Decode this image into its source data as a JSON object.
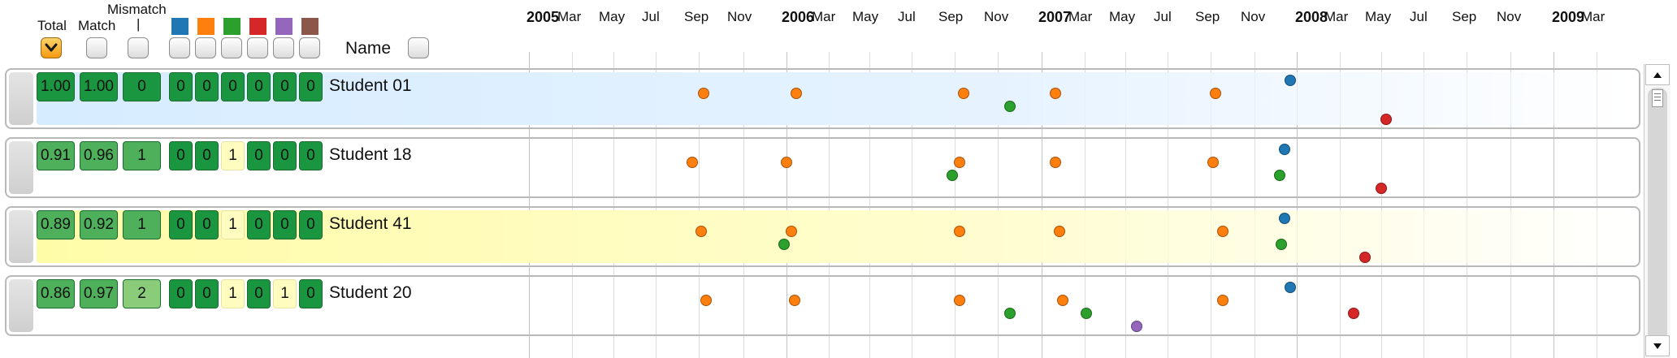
{
  "header": {
    "total_label": "Total",
    "match_label": "Match",
    "mismatch_label": "Mismatch",
    "mismatch_tick": "|",
    "name_label": "Name",
    "active_sort": "total",
    "category_colors": [
      "#1f77b4",
      "#ff7f0e",
      "#2ca02c",
      "#d62728",
      "#9467bd",
      "#8c564b"
    ]
  },
  "timeline": {
    "ticks": [
      {
        "label": "2005",
        "year": true
      },
      {
        "label": "Mar",
        "year": false
      },
      {
        "label": "May",
        "year": false
      },
      {
        "label": "Jul",
        "year": false
      },
      {
        "label": "Sep",
        "year": false
      },
      {
        "label": "Nov",
        "year": false
      },
      {
        "label": "2006",
        "year": true
      },
      {
        "label": "Mar",
        "year": false
      },
      {
        "label": "May",
        "year": false
      },
      {
        "label": "Jul",
        "year": false
      },
      {
        "label": "Sep",
        "year": false
      },
      {
        "label": "Nov",
        "year": false
      },
      {
        "label": "2007",
        "year": true
      },
      {
        "label": "Mar",
        "year": false
      },
      {
        "label": "May",
        "year": false
      },
      {
        "label": "Jul",
        "year": false
      },
      {
        "label": "Sep",
        "year": false
      },
      {
        "label": "Nov",
        "year": false
      },
      {
        "label": "2008",
        "year": true
      },
      {
        "label": "Mar",
        "year": false
      },
      {
        "label": "May",
        "year": false
      },
      {
        "label": "Jul",
        "year": false
      },
      {
        "label": "Sep",
        "year": false
      },
      {
        "label": "Nov",
        "year": false
      },
      {
        "label": "2009",
        "year": true
      },
      {
        "label": "Mar",
        "year": false
      }
    ]
  },
  "rows": [
    {
      "name": "Student 01",
      "highlight": "blue",
      "total": "1.00",
      "match": "1.00",
      "mismatch": "0",
      "counts": [
        "0",
        "0",
        "0",
        "0",
        "0",
        "0"
      ],
      "events": [
        {
          "date": "2005-09-05",
          "cat": 1,
          "lane": 1
        },
        {
          "date": "2006-01-15",
          "cat": 1,
          "lane": 1
        },
        {
          "date": "2006-09-10",
          "cat": 1,
          "lane": 1
        },
        {
          "date": "2006-11-15",
          "cat": 2,
          "lane": 2
        },
        {
          "date": "2007-01-20",
          "cat": 1,
          "lane": 1
        },
        {
          "date": "2007-09-05",
          "cat": 1,
          "lane": 1
        },
        {
          "date": "2007-12-20",
          "cat": 0,
          "lane": 0
        },
        {
          "date": "2008-05-05",
          "cat": 3,
          "lane": 3
        }
      ]
    },
    {
      "name": "Student 18",
      "highlight": "white",
      "total": "0.91",
      "match": "0.96",
      "mismatch": "1",
      "counts": [
        "0",
        "0",
        "1",
        "0",
        "0",
        "0"
      ],
      "events": [
        {
          "date": "2005-08-20",
          "cat": 1,
          "lane": 1
        },
        {
          "date": "2006-01-01",
          "cat": 1,
          "lane": 1
        },
        {
          "date": "2006-09-05",
          "cat": 1,
          "lane": 1
        },
        {
          "date": "2006-08-25",
          "cat": 2,
          "lane": 2
        },
        {
          "date": "2007-01-20",
          "cat": 1,
          "lane": 1
        },
        {
          "date": "2007-09-01",
          "cat": 1,
          "lane": 1
        },
        {
          "date": "2007-12-12",
          "cat": 0,
          "lane": 0
        },
        {
          "date": "2007-12-05",
          "cat": 2,
          "lane": 2
        },
        {
          "date": "2008-04-28",
          "cat": 3,
          "lane": 3
        }
      ]
    },
    {
      "name": "Student 41",
      "highlight": "yellow",
      "total": "0.89",
      "match": "0.92",
      "mismatch": "1",
      "counts": [
        "0",
        "0",
        "1",
        "0",
        "0",
        "0"
      ],
      "events": [
        {
          "date": "2005-09-01",
          "cat": 1,
          "lane": 1
        },
        {
          "date": "2006-01-08",
          "cat": 1,
          "lane": 1
        },
        {
          "date": "2005-12-28",
          "cat": 2,
          "lane": 2
        },
        {
          "date": "2006-09-05",
          "cat": 1,
          "lane": 1
        },
        {
          "date": "2007-01-25",
          "cat": 1,
          "lane": 1
        },
        {
          "date": "2007-09-15",
          "cat": 1,
          "lane": 1
        },
        {
          "date": "2007-12-12",
          "cat": 0,
          "lane": 0
        },
        {
          "date": "2007-12-08",
          "cat": 2,
          "lane": 2
        },
        {
          "date": "2008-04-05",
          "cat": 3,
          "lane": 3
        }
      ]
    },
    {
      "name": "Student 20",
      "highlight": "white",
      "total": "0.86",
      "match": "0.97",
      "mismatch": "2",
      "counts": [
        "0",
        "0",
        "1",
        "0",
        "1",
        "0"
      ],
      "events": [
        {
          "date": "2005-09-08",
          "cat": 1,
          "lane": 1
        },
        {
          "date": "2006-01-12",
          "cat": 1,
          "lane": 1
        },
        {
          "date": "2006-09-05",
          "cat": 1,
          "lane": 1
        },
        {
          "date": "2006-11-15",
          "cat": 2,
          "lane": 2
        },
        {
          "date": "2007-01-30",
          "cat": 1,
          "lane": 1
        },
        {
          "date": "2007-03-05",
          "cat": 2,
          "lane": 2
        },
        {
          "date": "2007-05-15",
          "cat": 4,
          "lane": 3
        },
        {
          "date": "2007-09-15",
          "cat": 1,
          "lane": 1
        },
        {
          "date": "2007-12-20",
          "cat": 0,
          "lane": 0
        },
        {
          "date": "2008-03-20",
          "cat": 3,
          "lane": 2
        }
      ]
    }
  ]
}
